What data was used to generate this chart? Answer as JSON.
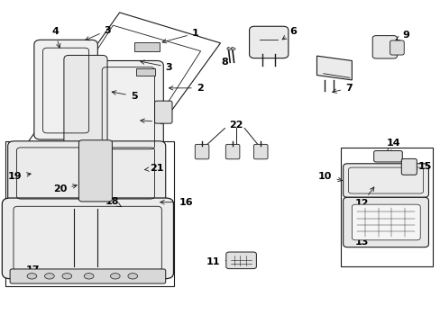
{
  "bg_color": "#ffffff",
  "line_color": "#1a1a1a",
  "text_color": "#000000",
  "font_size": 8
}
